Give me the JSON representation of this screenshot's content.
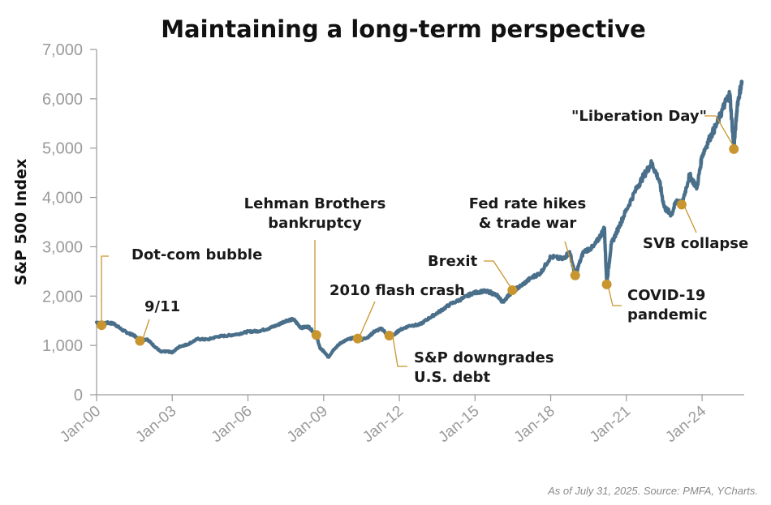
{
  "chart_data": {
    "type": "line",
    "title": "Maintaining a long-term perspective",
    "ylabel": "S&P 500 Index",
    "xlabel": "",
    "ylim": [
      0,
      7000
    ],
    "yticks": [
      0,
      1000,
      2000,
      3000,
      4000,
      5000,
      6000,
      7000
    ],
    "ytick_labels": [
      "0",
      "1,000",
      "2,000",
      "3,000",
      "4,000",
      "5,000",
      "6,000",
      "7,000"
    ],
    "xlim": [
      2000.0,
      2025.67
    ],
    "xticks": [
      2000,
      2003,
      2006,
      2009,
      2012,
      2015,
      2018,
      2021,
      2024
    ],
    "xtick_labels": [
      "Jan-00",
      "Jan-03",
      "Jan-06",
      "Jan-09",
      "Jan-12",
      "Jan-15",
      "Jan-18",
      "Jan-21",
      "Jan-24"
    ],
    "line_color": "#4a6f8a",
    "marker_color": "#c9952e",
    "series": [
      {
        "name": "S&P 500 Index",
        "x": [
          2000.0,
          2000.2,
          2000.45,
          2000.7,
          2001.0,
          2001.25,
          2001.5,
          2001.72,
          2002.0,
          2002.3,
          2002.55,
          2002.8,
          2003.0,
          2003.3,
          2003.6,
          2004.0,
          2004.4,
          2004.8,
          2005.2,
          2005.6,
          2006.0,
          2006.4,
          2006.8,
          2007.2,
          2007.5,
          2007.8,
          2008.1,
          2008.4,
          2008.71,
          2008.85,
          2009.0,
          2009.19,
          2009.4,
          2009.7,
          2010.0,
          2010.35,
          2010.5,
          2010.8,
          2011.0,
          2011.3,
          2011.6,
          2011.8,
          2012.0,
          2012.4,
          2012.8,
          2013.2,
          2013.6,
          2014.0,
          2014.5,
          2014.9,
          2015.3,
          2015.6,
          2015.9,
          2016.1,
          2016.48,
          2016.8,
          2017.2,
          2017.6,
          2018.0,
          2018.5,
          2018.75,
          2018.97,
          2019.3,
          2019.7,
          2020.0,
          2020.13,
          2020.22,
          2020.4,
          2020.7,
          2021.0,
          2021.4,
          2021.7,
          2022.0,
          2022.3,
          2022.5,
          2022.78,
          2023.0,
          2023.19,
          2023.5,
          2023.8,
          2024.0,
          2024.3,
          2024.6,
          2024.9,
          2025.1,
          2025.26,
          2025.4,
          2025.58
        ],
        "values": [
          1469,
          1430,
          1460,
          1440,
          1320,
          1250,
          1200,
          1092,
          1130,
          980,
          870,
          880,
          860,
          980,
          1020,
          1130,
          1120,
          1180,
          1200,
          1230,
          1280,
          1290,
          1340,
          1420,
          1500,
          1530,
          1360,
          1380,
          1210,
          950,
          880,
          760,
          920,
          1060,
          1130,
          1170,
          1114,
          1180,
          1280,
          1340,
          1180,
          1220,
          1310,
          1400,
          1420,
          1560,
          1690,
          1830,
          1950,
          2060,
          2100,
          2080,
          2000,
          1880,
          2100,
          2200,
          2360,
          2470,
          2800,
          2750,
          2900,
          2420,
          2900,
          3000,
          3250,
          3380,
          2240,
          3050,
          3400,
          3750,
          4180,
          4450,
          4700,
          4350,
          3800,
          3650,
          3950,
          3850,
          4450,
          4200,
          4850,
          5200,
          5500,
          5900,
          6100,
          4980,
          5900,
          6350
        ]
      }
    ],
    "annotations": [
      {
        "id": "dotcom",
        "label": [
          "Dot-com bubble"
        ],
        "x": 2000.2,
        "value": 1410
      },
      {
        "id": "911",
        "label": [
          "9/11"
        ],
        "x": 2001.72,
        "value": 1092
      },
      {
        "id": "lehman",
        "label": [
          "Lehman Brothers",
          "bankruptcy"
        ],
        "x": 2008.71,
        "value": 1211
      },
      {
        "id": "flashcrash",
        "label": [
          "2010 flash crash"
        ],
        "x": 2010.35,
        "value": 1140
      },
      {
        "id": "downgrade",
        "label": [
          "S&P downgrades",
          "U.S. debt"
        ],
        "x": 2011.6,
        "value": 1199
      },
      {
        "id": "brexit",
        "label": [
          "Brexit"
        ],
        "x": 2016.48,
        "value": 2120
      },
      {
        "id": "fed",
        "label": [
          "Fed rate hikes",
          "& trade war"
        ],
        "x": 2018.97,
        "value": 2420
      },
      {
        "id": "covid",
        "label": [
          "COVID-19",
          "pandemic"
        ],
        "x": 2020.22,
        "value": 2237
      },
      {
        "id": "svb",
        "label": [
          "SVB collapse"
        ],
        "x": 2023.19,
        "value": 3855
      },
      {
        "id": "liberation",
        "label": [
          "\"Liberation Day\""
        ],
        "x": 2025.26,
        "value": 4980
      }
    ]
  },
  "source_note": "As of July 31, 2025. Source: PMFA, YCharts."
}
